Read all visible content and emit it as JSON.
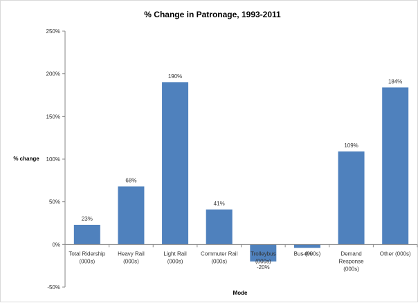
{
  "chart_data": {
    "type": "bar",
    "title": "% Change  in Patronage, 1993-2011",
    "xlabel": "Mode",
    "ylabel": "% change",
    "ylim": [
      -50,
      250
    ],
    "yticks": [
      "-50%",
      "0%",
      "50%",
      "100%",
      "150%",
      "200%",
      "250%"
    ],
    "ytick_values": [
      -50,
      0,
      50,
      100,
      150,
      200,
      250
    ],
    "categories": [
      [
        "Total Ridership",
        "(000s)"
      ],
      [
        "Heavy Rail",
        "(000s)"
      ],
      [
        "Light Rail",
        "(000s)"
      ],
      [
        "Commuter Rail",
        "(000s)"
      ],
      [
        "Trolleybus",
        "(000s)"
      ],
      [
        "Bus (000s)"
      ],
      [
        "Demand",
        "Response",
        "(000s)"
      ],
      [
        "Other (000s)"
      ]
    ],
    "values": [
      23,
      68,
      190,
      41,
      -20,
      -4,
      109,
      184
    ],
    "data_labels": [
      "23%",
      "68%",
      "190%",
      "41%",
      "-20%",
      "-4%",
      "109%",
      "184%"
    ],
    "grid": false,
    "legend": "none",
    "bar_color": "#4f81bd"
  }
}
